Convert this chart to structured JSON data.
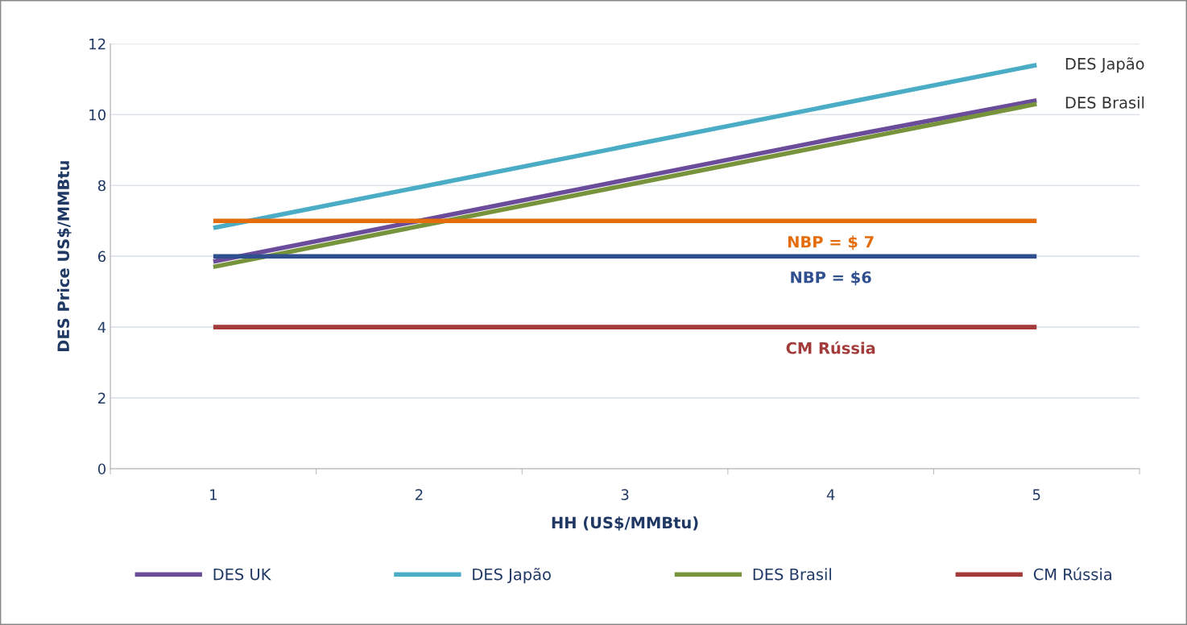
{
  "chart_data": {
    "type": "line",
    "xlabel": "HH (US$/MMBtu)",
    "ylabel": "DES Price US$/MMBtu",
    "categories": [
      "1",
      "2",
      "3",
      "4",
      "5"
    ],
    "series": [
      {
        "name": "DES UK",
        "color": "#6b4c9a",
        "values": [
          5.85,
          7.0,
          8.15,
          9.3,
          10.4
        ]
      },
      {
        "name": "DES Japão",
        "color": "#4bacc6",
        "values": [
          6.8,
          7.95,
          9.1,
          10.25,
          11.4
        ]
      },
      {
        "name": "DES Brasil",
        "color": "#77933c",
        "values": [
          5.7,
          6.85,
          8.0,
          9.15,
          10.3
        ]
      },
      {
        "name": "CM Rússia",
        "color": "#a33b3b",
        "values": [
          4,
          4,
          4,
          4,
          4
        ]
      },
      {
        "color": "#e46c0a",
        "values": [
          7,
          7,
          7,
          7,
          7
        ]
      },
      {
        "color": "#2f4f8f",
        "values": [
          6,
          6,
          6,
          6,
          6
        ]
      }
    ],
    "annotations": [
      {
        "text": "DES Japão",
        "x": "5",
        "y": 11.4
      },
      {
        "text": "DES Brasil",
        "x": "5",
        "y": 10.3
      },
      {
        "text": "NBP = $ 7",
        "x": "4",
        "y": 7
      },
      {
        "text": "NBP = $6",
        "x": "4",
        "y": 6
      },
      {
        "text": "CM Rússia",
        "x": "4",
        "y": 4
      }
    ],
    "ylim": [
      0,
      12
    ],
    "yticks": [
      0,
      2,
      4,
      6,
      8,
      10,
      12
    ],
    "grid": "y",
    "legend": "bottom",
    "marker": "none",
    "line_style": "solid"
  }
}
